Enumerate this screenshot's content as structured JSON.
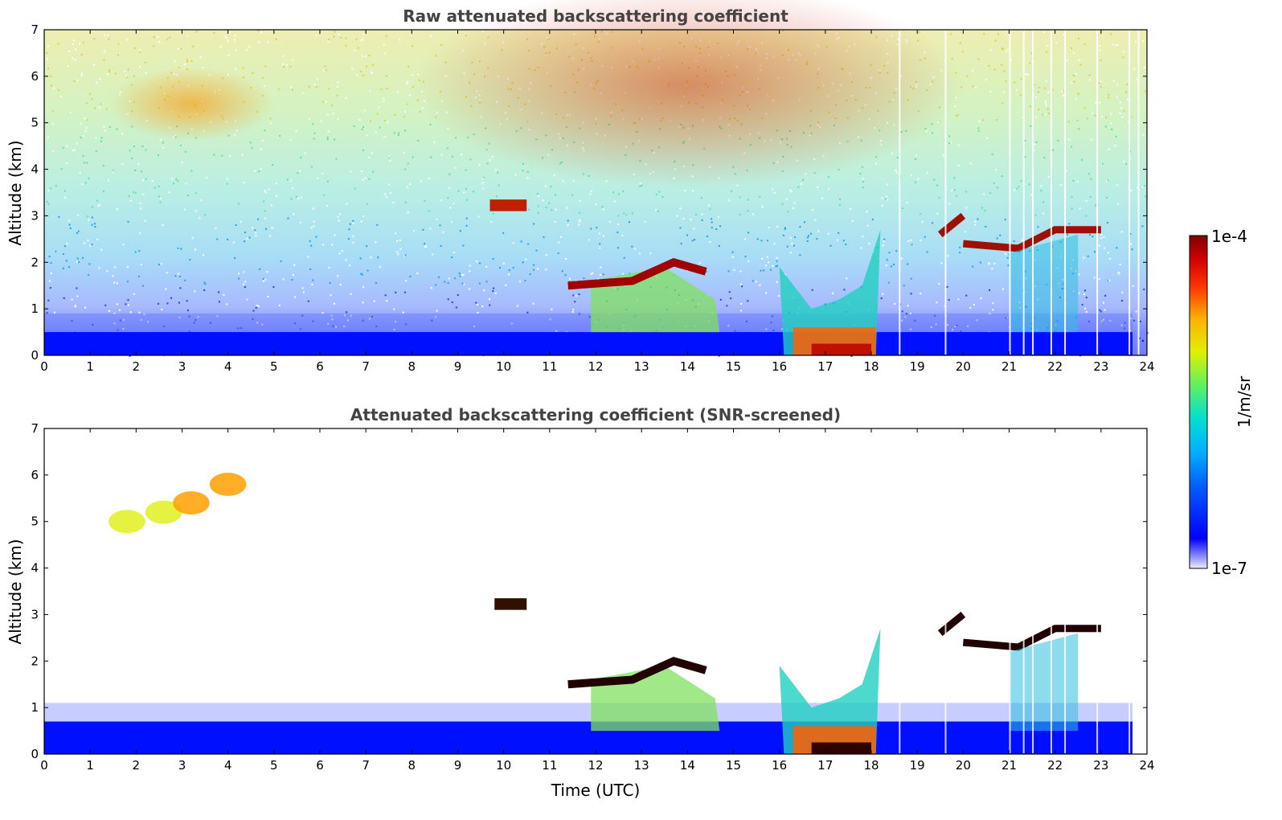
{
  "chart_data": [
    {
      "type": "heatmap",
      "title": "Raw attenuated backscattering coefficient",
      "xlabel": "",
      "ylabel": "Altitude (km)",
      "xlim": [
        0,
        24
      ],
      "ylim": [
        0,
        7
      ],
      "xticks": [
        "0",
        "1",
        "2",
        "3",
        "4",
        "5",
        "6",
        "7",
        "8",
        "9",
        "10",
        "11",
        "12",
        "13",
        "14",
        "15",
        "16",
        "17",
        "18",
        "19",
        "20",
        "21",
        "22",
        "23",
        "24"
      ],
      "yticks": [
        "0",
        "1",
        "2",
        "3",
        "4",
        "5",
        "6",
        "7"
      ]
    },
    {
      "type": "heatmap",
      "title": "Attenuated backscattering coefficient (SNR-screened)",
      "xlabel": "Time (UTC)",
      "ylabel": "Altitude (km)",
      "xlim": [
        0,
        24
      ],
      "ylim": [
        0,
        7
      ],
      "xticks": [
        "0",
        "1",
        "2",
        "3",
        "4",
        "5",
        "6",
        "7",
        "8",
        "9",
        "10",
        "11",
        "12",
        "13",
        "14",
        "15",
        "16",
        "17",
        "18",
        "19",
        "20",
        "21",
        "22",
        "23",
        "24"
      ],
      "yticks": [
        "0",
        "1",
        "2",
        "3",
        "4",
        "5",
        "6",
        "7"
      ]
    }
  ],
  "colorbar": {
    "label": "1/m/sr",
    "max_label": "1e-4",
    "min_label": "1e-7",
    "colors": [
      "#e8e8f8",
      "#0000ff",
      "#0080ff",
      "#00d0e0",
      "#60f060",
      "#f0f000",
      "#ff8000",
      "#ff1000",
      "#800000"
    ]
  }
}
